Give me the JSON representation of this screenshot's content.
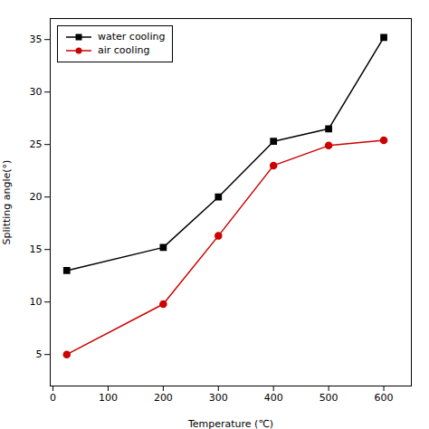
{
  "chart_data": {
    "type": "line",
    "x": [
      25,
      200,
      300,
      400,
      500,
      600
    ],
    "series": [
      {
        "name": "water cooling",
        "color": "#000000",
        "marker": "square",
        "values": [
          13.0,
          15.2,
          20.0,
          25.3,
          26.5,
          35.2
        ]
      },
      {
        "name": "air cooling",
        "color": "#cc0000",
        "marker": "circle",
        "values": [
          5.0,
          9.8,
          16.3,
          23.0,
          24.9,
          25.4
        ]
      }
    ],
    "xlabel": "Temperature (℃)",
    "ylabel": "Splitting angle(°)",
    "xlim": [
      -5,
      650
    ],
    "ylim": [
      2,
      37
    ],
    "xticks": [
      0,
      100,
      200,
      300,
      400,
      500,
      600
    ],
    "yticks": [
      5,
      10,
      15,
      20,
      25,
      30,
      35
    ],
    "legend": "upper left",
    "grid": false
  }
}
